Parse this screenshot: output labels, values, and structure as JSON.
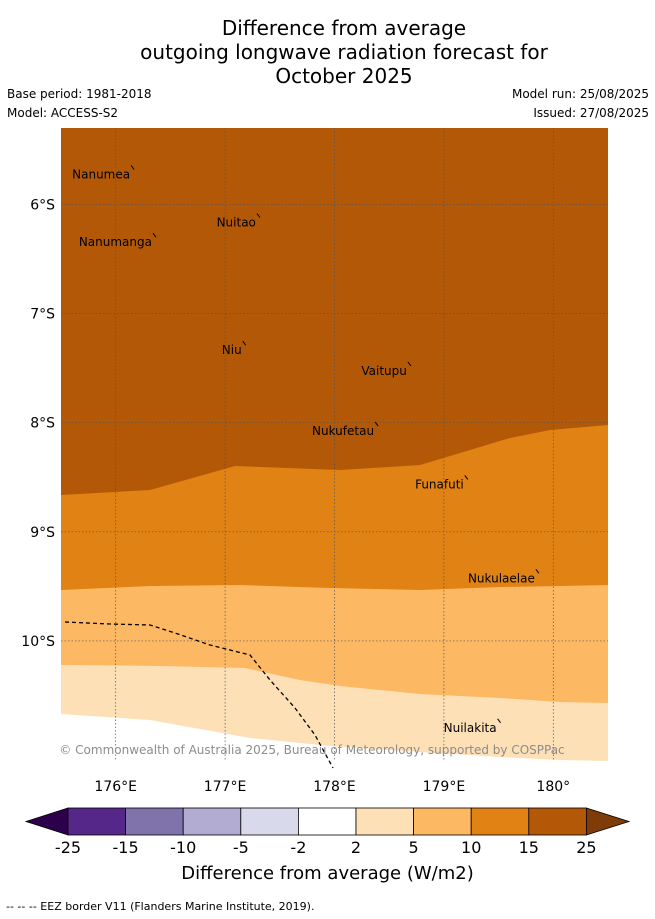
{
  "title": {
    "line1": "Difference from average",
    "line2": "outgoing longwave radiation forecast for",
    "line3": "October 2025"
  },
  "meta": {
    "base_period": "Base period: 1981-2018",
    "model": "Model: ACCESS-S2",
    "model_run": "Model run: 25/08/2025",
    "issued": "Issued: 27/08/2025"
  },
  "map": {
    "lon_range": [
      175.5,
      180.5
    ],
    "lat_range": [
      -11.1,
      -5.3
    ],
    "lon_ticks": [
      {
        "value": 176,
        "label": "176°E"
      },
      {
        "value": 177,
        "label": "177°E"
      },
      {
        "value": 178,
        "label": "178°E"
      },
      {
        "value": 179,
        "label": "179°E"
      },
      {
        "value": 180,
        "label": "180°"
      }
    ],
    "lat_ticks": [
      {
        "value": -6,
        "label": "6°S"
      },
      {
        "value": -7,
        "label": "7°S"
      },
      {
        "value": -8,
        "label": "8°S"
      },
      {
        "value": -9,
        "label": "9°S"
      },
      {
        "value": -10,
        "label": "10°S"
      }
    ],
    "places": [
      {
        "name": "Nanumea",
        "lon": 176.15,
        "lat": -5.68
      },
      {
        "name": "Nuitao",
        "lon": 177.3,
        "lat": -6.12
      },
      {
        "name": "Nanumanga",
        "lon": 176.35,
        "lat": -6.3
      },
      {
        "name": "Niu",
        "lon": 177.17,
        "lat": -7.29
      },
      {
        "name": "Vaitupu",
        "lon": 178.68,
        "lat": -7.48
      },
      {
        "name": "Nukufetau",
        "lon": 178.38,
        "lat": -8.03
      },
      {
        "name": "Funafuti",
        "lon": 179.2,
        "lat": -8.52
      },
      {
        "name": "Nukulaelae",
        "lon": 179.85,
        "lat": -9.38
      },
      {
        "name": "Nuilakita",
        "lon": 179.5,
        "lat": -10.75
      }
    ],
    "colors": {
      "15_25": "#b35806",
      "10_15": "#e08214",
      "5_10": "#fdb863",
      "2_5": "#fee0b6"
    },
    "copyright": "© Commonwealth of Australia 2025, Bureau of Meteorology, supported by COSPPac"
  },
  "colorbar": {
    "labels": [
      "-25",
      "-15",
      "-10",
      "-5",
      "-2",
      "2",
      "5",
      "10",
      "15",
      "25"
    ],
    "colors": [
      "#542788",
      "#8073ac",
      "#b2abd2",
      "#d8daeb",
      "#ffffff",
      "#fee0b6",
      "#fdb863",
      "#e08214",
      "#b35806"
    ],
    "under_color": "#2d004b",
    "over_color": "#7f3b08",
    "title": "Difference from average (W/m2)"
  },
  "footer": "--  --  -- EEZ border V11 (Flanders Marine Institute, 2019)."
}
